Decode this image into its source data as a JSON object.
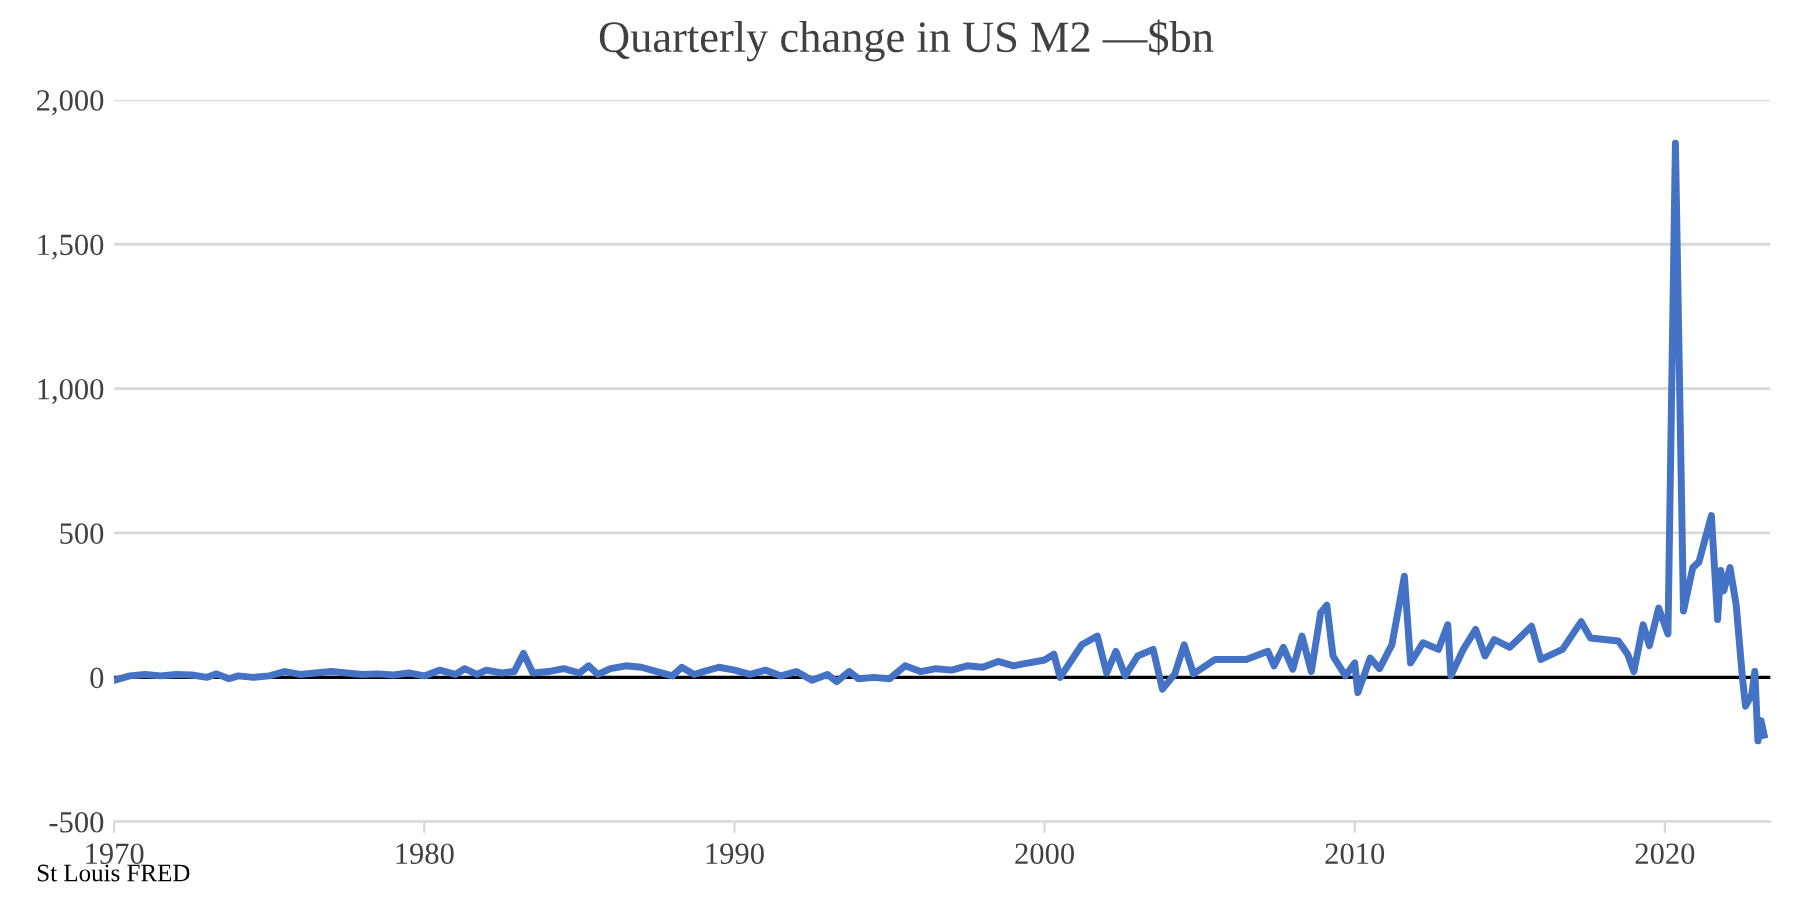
{
  "chart_data": {
    "type": "line",
    "title": "Quarterly change in US M2 —$bn",
    "annotations": [
      "St Louis FRED"
    ],
    "series": [
      {
        "color": "#4472c4",
        "x": [
          1970.0,
          1970.5,
          1971.0,
          1971.5,
          1972.0,
          1972.5,
          1973.0,
          1973.3,
          1973.7,
          1974.0,
          1974.5,
          1975.0,
          1975.5,
          1976.0,
          1976.5,
          1977.0,
          1977.5,
          1978.0,
          1978.5,
          1979.0,
          1979.5,
          1980.0,
          1980.5,
          1981.0,
          1981.3,
          1981.7,
          1982.0,
          1982.5,
          1982.9,
          1983.2,
          1983.5,
          1984.0,
          1984.5,
          1985.0,
          1985.3,
          1985.6,
          1986.0,
          1986.5,
          1987.0,
          1987.5,
          1988.0,
          1988.3,
          1988.7,
          1989.0,
          1989.5,
          1990.0,
          1990.5,
          1991.0,
          1991.5,
          1992.0,
          1992.5,
          1993.0,
          1993.3,
          1993.7,
          1994.0,
          1994.5,
          1995.0,
          1995.5,
          1996.0,
          1996.5,
          1997.0,
          1997.5,
          1998.0,
          1998.5,
          1999.0,
          1999.5,
          2000.0,
          2000.3,
          2000.5,
          2001.2,
          2001.7,
          2002.0,
          2002.3,
          2002.6,
          2003.0,
          2003.5,
          2003.8,
          2004.2,
          2004.5,
          2004.8,
          2005.5,
          2006.5,
          2007.2,
          2007.4,
          2007.7,
          2008.0,
          2008.3,
          2008.6,
          2008.9,
          2009.1,
          2009.3,
          2009.7,
          2010.0,
          2010.1,
          2010.5,
          2010.8,
          2011.2,
          2011.6,
          2011.8,
          2012.2,
          2012.7,
          2013.0,
          2013.1,
          2013.5,
          2013.9,
          2014.2,
          2014.5,
          2015.0,
          2015.7,
          2016.0,
          2016.7,
          2017.3,
          2017.6,
          2018.5,
          2018.8,
          2019.0,
          2019.3,
          2019.5,
          2019.8,
          2020.1,
          2020.34,
          2020.6,
          2020.9,
          2021.1,
          2021.3,
          2021.5,
          2021.7,
          2021.8,
          2021.9,
          2022.1,
          2022.3,
          2022.5,
          2022.6,
          2022.8,
          2022.9,
          2023.0,
          2023.1,
          2023.2
        ],
        "values": [
          -10,
          5,
          10,
          5,
          10,
          8,
          0,
          12,
          -5,
          5,
          0,
          5,
          20,
          10,
          15,
          20,
          15,
          10,
          12,
          8,
          15,
          5,
          25,
          10,
          30,
          10,
          25,
          15,
          20,
          83,
          15,
          20,
          30,
          15,
          40,
          10,
          30,
          40,
          35,
          20,
          5,
          35,
          10,
          20,
          35,
          25,
          10,
          25,
          5,
          20,
          -10,
          10,
          -15,
          20,
          -5,
          0,
          -5,
          40,
          20,
          30,
          25,
          40,
          35,
          55,
          40,
          50,
          60,
          80,
          0,
          113,
          143,
          15,
          90,
          5,
          74,
          97,
          -41,
          12,
          113,
          12,
          62,
          62,
          90,
          40,
          104,
          28,
          143,
          20,
          223,
          250,
          74,
          5,
          50,
          -53,
          67,
          30,
          113,
          350,
          50,
          120,
          97,
          182,
          5,
          97,
          166,
          74,
          131,
          104,
          177,
          62,
          97,
          193,
          136,
          126,
          80,
          20,
          182,
          110,
          240,
          150,
          1850,
          230,
          380,
          400,
          480,
          560,
          200,
          370,
          300,
          380,
          250,
          0,
          -100,
          -60,
          20,
          -220,
          -150,
          -200
        ]
      }
    ],
    "xlim": [
      1970,
      2023.4
    ],
    "xticks": [
      1970,
      1980,
      1990,
      2000,
      2010,
      2020
    ],
    "ylim": [
      -500,
      2000
    ],
    "yticks": [
      {
        "value": -500,
        "label": "-500"
      },
      0,
      500,
      {
        "value": 1000,
        "label": "1,000"
      },
      {
        "value": 1500,
        "label": "1,500"
      },
      {
        "value": 2000,
        "label": "2,000"
      }
    ],
    "ref_lines": [
      {
        "axis": "y",
        "value": 0,
        "color": "#000000"
      }
    ],
    "grid": "y",
    "legend": false,
    "marker": "none",
    "line_style": "solid"
  }
}
